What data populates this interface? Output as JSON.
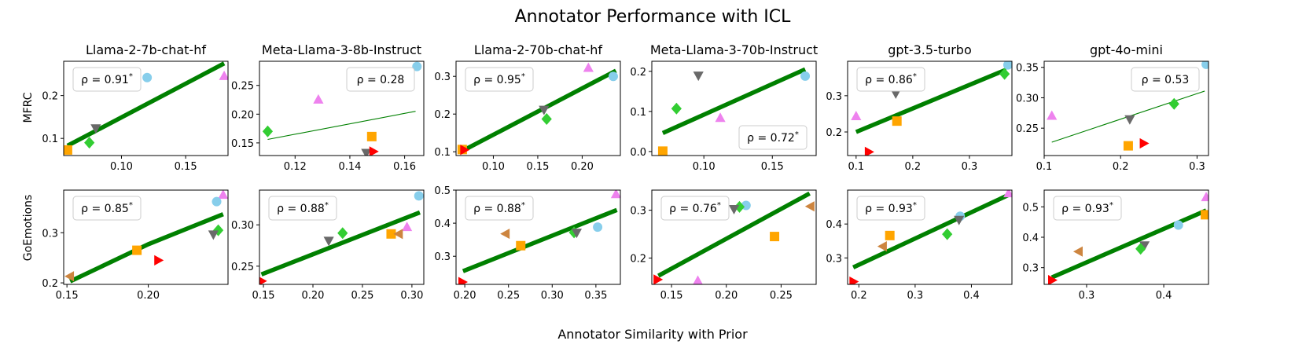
{
  "figure": {
    "title": "Annotator Performance with ICL",
    "xlabel": "Annotator Similarity with Prior",
    "row_labels": [
      "MFRC",
      "GoEmotions"
    ],
    "colors": {
      "line": "#008000",
      "sky": "#87ceeb",
      "violet": "#ee82ee",
      "gray": "#696969",
      "green": "#32cd32",
      "orange": "#ffa500",
      "red": "#ff0000",
      "brown": "#cd853f"
    }
  },
  "chart_data": [
    {
      "type": "scatter",
      "row": 0,
      "col": 0,
      "title": "Llama-2-7b-chat-hf",
      "rho": "ρ = 0.91*",
      "rho_pos": "top-left",
      "xlim": [
        0.055,
        0.183
      ],
      "ylim": [
        0.06,
        0.28
      ],
      "xticks": [
        0.1,
        0.15
      ],
      "xtick_labels": [
        "0.10",
        "0.15"
      ],
      "yticks": [
        0.1,
        0.2
      ],
      "ytick_labels": [
        "0.1",
        "0.2"
      ],
      "fit": {
        "x": [
          0.058,
          0.18
        ],
        "y": [
          0.083,
          0.275
        ],
        "thick": true
      },
      "points": [
        {
          "m": "sky",
          "x": 0.12,
          "y": 0.242
        },
        {
          "m": "violet",
          "x": 0.18,
          "y": 0.245
        },
        {
          "m": "gray",
          "x": 0.08,
          "y": 0.124
        },
        {
          "m": "green",
          "x": 0.075,
          "y": 0.09
        },
        {
          "m": "orange",
          "x": 0.058,
          "y": 0.073
        }
      ]
    },
    {
      "type": "scatter",
      "row": 0,
      "col": 1,
      "title": "Meta-Llama-3-8b-Instruct",
      "rho": "ρ = 0.28",
      "rho_pos": "top-right",
      "xlim": [
        0.107,
        0.167
      ],
      "ylim": [
        0.128,
        0.292
      ],
      "xticks": [
        0.12,
        0.14,
        0.16
      ],
      "xtick_labels": [
        "0.12",
        "0.14",
        "0.16"
      ],
      "yticks": [
        0.15,
        0.2,
        0.25
      ],
      "ytick_labels": [
        "0.15",
        "0.20",
        "0.25"
      ],
      "fit": {
        "x": [
          0.11,
          0.164
        ],
        "y": [
          0.156,
          0.205
        ],
        "thick": false
      },
      "points": [
        {
          "m": "sky",
          "x": 0.1645,
          "y": 0.283
        },
        {
          "m": "violet",
          "x": 0.1285,
          "y": 0.225
        },
        {
          "m": "green",
          "x": 0.11,
          "y": 0.17
        },
        {
          "m": "orange",
          "x": 0.148,
          "y": 0.161
        },
        {
          "m": "gray",
          "x": 0.146,
          "y": 0.133
        },
        {
          "m": "red",
          "x": 0.1485,
          "y": 0.135
        }
      ]
    },
    {
      "type": "scatter",
      "row": 0,
      "col": 2,
      "title": "Llama-2-70b-chat-hf",
      "rho": "ρ = 0.95*",
      "rho_pos": "top-left",
      "xlim": [
        0.058,
        0.243
      ],
      "ylim": [
        0.09,
        0.34
      ],
      "xticks": [
        0.1,
        0.15,
        0.2
      ],
      "xtick_labels": [
        "0.10",
        "0.15",
        "0.20"
      ],
      "yticks": [
        0.1,
        0.2,
        0.3
      ],
      "ytick_labels": [
        "0.1",
        "0.2",
        "0.3"
      ],
      "fit": {
        "x": [
          0.065,
          0.238
        ],
        "y": [
          0.102,
          0.315
        ],
        "thick": true
      },
      "points": [
        {
          "m": "violet",
          "x": 0.207,
          "y": 0.322
        },
        {
          "m": "sky",
          "x": 0.235,
          "y": 0.3
        },
        {
          "m": "gray",
          "x": 0.157,
          "y": 0.212
        },
        {
          "m": "green",
          "x": 0.16,
          "y": 0.187
        },
        {
          "m": "orange",
          "x": 0.065,
          "y": 0.106
        },
        {
          "m": "red",
          "x": 0.067,
          "y": 0.105
        }
      ]
    },
    {
      "type": "scatter",
      "row": 0,
      "col": 3,
      "title": "Meta-Llama-3-70b-Instruct",
      "rho": "ρ = 0.72*",
      "rho_pos": "bottom-right",
      "xlim": [
        0.062,
        0.182
      ],
      "ylim": [
        -0.01,
        0.225
      ],
      "xticks": [
        0.1,
        0.15
      ],
      "xtick_labels": [
        "0.10",
        "0.15"
      ],
      "yticks": [
        0.0,
        0.1,
        0.2
      ],
      "ytick_labels": [
        "0.0",
        "0.1",
        "0.2"
      ],
      "fit": {
        "x": [
          0.07,
          0.174
        ],
        "y": [
          0.046,
          0.205
        ],
        "thick": true
      },
      "points": [
        {
          "m": "gray",
          "x": 0.096,
          "y": 0.19
        },
        {
          "m": "sky",
          "x": 0.174,
          "y": 0.188
        },
        {
          "m": "green",
          "x": 0.08,
          "y": 0.107
        },
        {
          "m": "violet",
          "x": 0.112,
          "y": 0.083
        },
        {
          "m": "orange",
          "x": 0.07,
          "y": 0.001
        }
      ]
    },
    {
      "type": "scatter",
      "row": 0,
      "col": 4,
      "title": "gpt-3.5-turbo",
      "rho": "ρ = 0.86*",
      "rho_pos": "top-left",
      "xlim": [
        0.085,
        0.375
      ],
      "ylim": [
        0.135,
        0.395
      ],
      "xticks": [
        0.1,
        0.2,
        0.3
      ],
      "xtick_labels": [
        "0.1",
        "0.2",
        "0.3"
      ],
      "yticks": [
        0.2,
        0.3
      ],
      "ytick_labels": [
        "0.2",
        "0.3"
      ],
      "fit": {
        "x": [
          0.1,
          0.365
        ],
        "y": [
          0.2,
          0.372
        ],
        "thick": true
      },
      "points": [
        {
          "m": "sky",
          "x": 0.368,
          "y": 0.385
        },
        {
          "m": "green",
          "x": 0.362,
          "y": 0.36
        },
        {
          "m": "gray",
          "x": 0.17,
          "y": 0.307
        },
        {
          "m": "violet",
          "x": 0.1,
          "y": 0.243
        },
        {
          "m": "orange",
          "x": 0.172,
          "y": 0.23
        },
        {
          "m": "red",
          "x": 0.122,
          "y": 0.145
        }
      ]
    },
    {
      "type": "scatter",
      "row": 0,
      "col": 5,
      "title": "gpt-4o-mini",
      "rho": "ρ = 0.53",
      "rho_pos": "top-right",
      "xlim": [
        0.1,
        0.315
      ],
      "ylim": [
        0.205,
        0.36
      ],
      "xticks": [
        0.1,
        0.2,
        0.3
      ],
      "xtick_labels": [
        "0.1",
        "0.2",
        "0.3"
      ],
      "yticks": [
        0.25,
        0.3,
        0.35
      ],
      "ytick_labels": [
        "0.25",
        "0.30",
        "0.35"
      ],
      "fit": {
        "x": [
          0.11,
          0.31
        ],
        "y": [
          0.227,
          0.311
        ],
        "thick": false
      },
      "points": [
        {
          "m": "sky",
          "x": 0.312,
          "y": 0.355
        },
        {
          "m": "green",
          "x": 0.27,
          "y": 0.29
        },
        {
          "m": "violet",
          "x": 0.11,
          "y": 0.27
        },
        {
          "m": "gray",
          "x": 0.212,
          "y": 0.265
        },
        {
          "m": "red",
          "x": 0.23,
          "y": 0.225
        },
        {
          "m": "orange",
          "x": 0.21,
          "y": 0.221
        }
      ]
    },
    {
      "type": "scatter",
      "row": 1,
      "col": 0,
      "title": "",
      "rho": "ρ = 0.85*",
      "rho_pos": "top-left",
      "xlim": [
        0.148,
        0.249
      ],
      "ylim": [
        0.197,
        0.385
      ],
      "xticks": [
        0.15,
        0.2
      ],
      "xtick_labels": [
        "0.15",
        "0.20"
      ],
      "yticks": [
        0.2,
        0.3
      ],
      "ytick_labels": [
        "0.2",
        "0.3"
      ],
      "fit": {
        "x": [
          0.152,
          0.2,
          0.246
        ],
        "y": [
          0.203,
          0.277,
          0.337
        ],
        "thick": true
      },
      "points": [
        {
          "m": "violet",
          "x": 0.246,
          "y": 0.375
        },
        {
          "m": "sky",
          "x": 0.242,
          "y": 0.362
        },
        {
          "m": "green",
          "x": 0.243,
          "y": 0.305
        },
        {
          "m": "gray",
          "x": 0.24,
          "y": 0.297
        },
        {
          "m": "orange",
          "x": 0.193,
          "y": 0.265
        },
        {
          "m": "red",
          "x": 0.206,
          "y": 0.245
        },
        {
          "m": "brown",
          "x": 0.152,
          "y": 0.213
        }
      ]
    },
    {
      "type": "scatter",
      "row": 1,
      "col": 1,
      "title": "",
      "rho": "ρ = 0.88*",
      "rho_pos": "top-left",
      "xlim": [
        0.146,
        0.312
      ],
      "ylim": [
        0.228,
        0.342
      ],
      "xticks": [
        0.15,
        0.2,
        0.25,
        0.3
      ],
      "xtick_labels": [
        "0.15",
        "0.20",
        "0.25",
        "0.30"
      ],
      "yticks": [
        0.25,
        0.3
      ],
      "ytick_labels": [
        "0.25",
        "0.30"
      ],
      "fit": {
        "x": [
          0.148,
          0.308
        ],
        "y": [
          0.24,
          0.315
        ],
        "thick": true
      },
      "points": [
        {
          "m": "sky",
          "x": 0.307,
          "y": 0.335
        },
        {
          "m": "violet",
          "x": 0.295,
          "y": 0.297
        },
        {
          "m": "green",
          "x": 0.23,
          "y": 0.29
        },
        {
          "m": "orange",
          "x": 0.279,
          "y": 0.289
        },
        {
          "m": "brown",
          "x": 0.287,
          "y": 0.289
        },
        {
          "m": "gray",
          "x": 0.216,
          "y": 0.281
        },
        {
          "m": "red",
          "x": 0.148,
          "y": 0.232
        }
      ]
    },
    {
      "type": "scatter",
      "row": 1,
      "col": 2,
      "title": "",
      "rho": "ρ = 0.88*",
      "rho_pos": "top-left",
      "xlim": [
        0.19,
        0.378
      ],
      "ylim": [
        0.215,
        0.5
      ],
      "xticks": [
        0.2,
        0.25,
        0.3,
        0.35
      ],
      "xtick_labels": [
        "0.20",
        "0.25",
        "0.30",
        "0.35"
      ],
      "yticks": [
        0.3,
        0.4,
        0.5
      ],
      "ytick_labels": [
        "0.3",
        "0.4",
        "0.5"
      ],
      "fit": {
        "x": [
          0.198,
          0.374
        ],
        "y": [
          0.255,
          0.44
        ],
        "thick": true
      },
      "points": [
        {
          "m": "violet",
          "x": 0.373,
          "y": 0.487
        },
        {
          "m": "sky",
          "x": 0.352,
          "y": 0.388
        },
        {
          "m": "green",
          "x": 0.325,
          "y": 0.372
        },
        {
          "m": "gray",
          "x": 0.328,
          "y": 0.372
        },
        {
          "m": "brown",
          "x": 0.247,
          "y": 0.368
        },
        {
          "m": "orange",
          "x": 0.264,
          "y": 0.332
        },
        {
          "m": "red",
          "x": 0.197,
          "y": 0.222
        }
      ]
    },
    {
      "type": "scatter",
      "row": 1,
      "col": 3,
      "title": "",
      "rho": "ρ = 0.76*",
      "rho_pos": "top-left",
      "xlim": [
        0.132,
        0.282
      ],
      "ylim": [
        0.145,
        0.342
      ],
      "xticks": [
        0.15,
        0.2,
        0.25
      ],
      "xtick_labels": [
        "0.15",
        "0.20",
        "0.25"
      ],
      "yticks": [
        0.2,
        0.3
      ],
      "ytick_labels": [
        "0.2",
        "0.3"
      ],
      "fit": {
        "x": [
          0.138,
          0.276
        ],
        "y": [
          0.163,
          0.335
        ],
        "thick": true
      },
      "points": [
        {
          "m": "sky",
          "x": 0.218,
          "y": 0.31
        },
        {
          "m": "green",
          "x": 0.212,
          "y": 0.307
        },
        {
          "m": "gray",
          "x": 0.207,
          "y": 0.303
        },
        {
          "m": "brown",
          "x": 0.277,
          "y": 0.308
        },
        {
          "m": "orange",
          "x": 0.244,
          "y": 0.245
        },
        {
          "m": "red",
          "x": 0.137,
          "y": 0.155
        },
        {
          "m": "violet",
          "x": 0.174,
          "y": 0.152
        }
      ]
    },
    {
      "type": "scatter",
      "row": 1,
      "col": 4,
      "title": "",
      "rho": "ρ = 0.93*",
      "rho_pos": "top-left",
      "xlim": [
        0.18,
        0.472
      ],
      "ylim": [
        0.222,
        0.5
      ],
      "xticks": [
        0.2,
        0.3,
        0.4
      ],
      "xtick_labels": [
        "0.2",
        "0.3",
        "0.4"
      ],
      "yticks": [
        0.3,
        0.4
      ],
      "ytick_labels": [
        "0.3",
        "0.4"
      ],
      "fit": {
        "x": [
          0.19,
          0.465
        ],
        "y": [
          0.272,
          0.485
        ],
        "thick": true
      },
      "points": [
        {
          "m": "violet",
          "x": 0.466,
          "y": 0.49
        },
        {
          "m": "sky",
          "x": 0.38,
          "y": 0.423
        },
        {
          "m": "gray",
          "x": 0.378,
          "y": 0.413
        },
        {
          "m": "green",
          "x": 0.357,
          "y": 0.37
        },
        {
          "m": "orange",
          "x": 0.255,
          "y": 0.366
        },
        {
          "m": "brown",
          "x": 0.243,
          "y": 0.334
        },
        {
          "m": "red",
          "x": 0.19,
          "y": 0.23
        }
      ]
    },
    {
      "type": "scatter",
      "row": 1,
      "col": 5,
      "title": "",
      "rho": "ρ = 0.93*",
      "rho_pos": "top-left",
      "xlim": [
        0.245,
        0.458
      ],
      "ylim": [
        0.245,
        0.555
      ],
      "xticks": [
        0.3,
        0.4
      ],
      "xtick_labels": [
        "0.3",
        "0.4"
      ],
      "yticks": [
        0.3,
        0.4,
        0.5
      ],
      "ytick_labels": [
        "0.3",
        "0.4",
        "0.5"
      ],
      "fit": {
        "x": [
          0.255,
          0.455
        ],
        "y": [
          0.268,
          0.488
        ],
        "thick": true
      },
      "points": [
        {
          "m": "violet",
          "x": 0.455,
          "y": 0.531
        },
        {
          "m": "orange",
          "x": 0.454,
          "y": 0.474
        },
        {
          "m": "sky",
          "x": 0.419,
          "y": 0.44
        },
        {
          "m": "gray",
          "x": 0.375,
          "y": 0.374
        },
        {
          "m": "green",
          "x": 0.37,
          "y": 0.362
        },
        {
          "m": "brown",
          "x": 0.29,
          "y": 0.353
        },
        {
          "m": "red",
          "x": 0.255,
          "y": 0.259
        }
      ]
    }
  ]
}
